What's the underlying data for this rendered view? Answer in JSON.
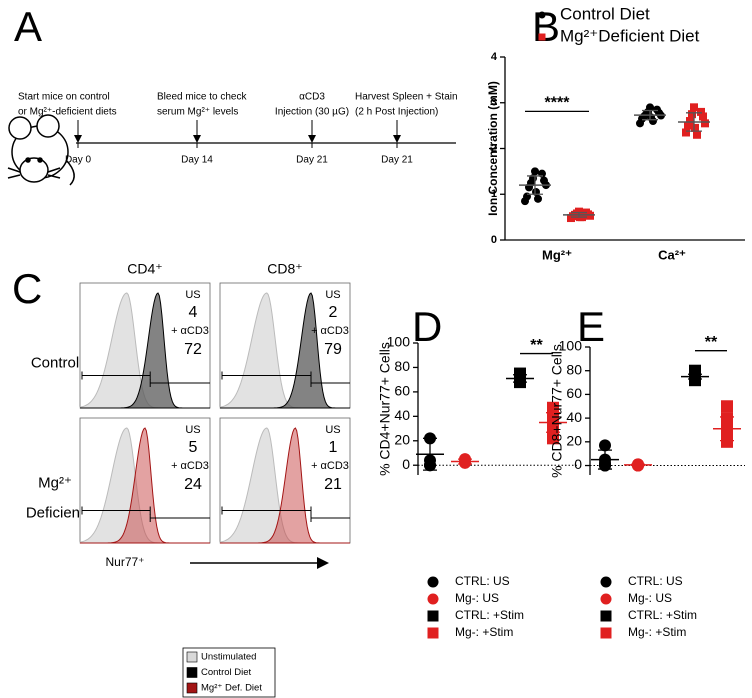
{
  "panel_labels": [
    "A",
    "B",
    "C",
    "D",
    "E"
  ],
  "timeline": {
    "events": [
      {
        "lines": [
          "Start mice on control",
          "or Mg²⁺-deficient diets"
        ],
        "day": "Day 0"
      },
      {
        "lines": [
          "Bleed mice to check",
          "serum Mg²⁺ levels"
        ],
        "day": "Day 14"
      },
      {
        "lines": [
          "αCD3",
          "Injection (30 µG)"
        ],
        "day": "Day 21"
      },
      {
        "lines": [
          "Harvest Spleen + Stain",
          "(2 h Post Injection)"
        ],
        "day": "Day 21"
      }
    ]
  },
  "histograms": {
    "columns": [
      "CD4⁺",
      "CD8⁺"
    ],
    "rows": [
      {
        "label_lines": [
          "Control"
        ]
      },
      {
        "label_lines": [
          "Mg²⁺",
          "Deficient"
        ]
      }
    ],
    "us_label": "US",
    "stim_label": "+ αCD3",
    "cells": [
      [
        {
          "us": 4,
          "stim": 72
        },
        {
          "us": 2,
          "stim": 79
        }
      ],
      [
        {
          "us": 5,
          "stim": 24
        },
        {
          "us": 1,
          "stim": 21
        }
      ]
    ],
    "x_label": "Nur77⁺",
    "legend": [
      {
        "name": "Unstimulated",
        "color": "#d9d9d9"
      },
      {
        "name": "Control Diet",
        "color": "#000000"
      },
      {
        "name": "Mg²⁺ Def. Diet",
        "color": "#a31515"
      }
    ]
  },
  "chart_data": [
    {
      "type": "dotplot",
      "y_label": "Ion Concentration (mM)",
      "categories": [
        "Mg²⁺",
        "Ca²⁺"
      ],
      "legend_position": "top",
      "series": [
        {
          "name": "Control Diet",
          "color": "#000000",
          "marker": "circle",
          "values": [
            [
              1.5,
              1.45,
              1.35,
              1.3,
              1.25,
              1.2,
              1.15,
              1.05,
              0.95,
              0.9,
              0.85
            ],
            [
              2.9,
              2.85,
              2.8,
              2.78,
              2.75,
              2.72,
              2.7,
              2.68,
              2.65,
              2.6,
              2.55
            ]
          ],
          "mean": [
            1.2,
            2.73
          ],
          "error": [
            0.2,
            0.1
          ]
        },
        {
          "name": "Mg²⁺Deficient Diet",
          "color": "#e02020",
          "marker": "square",
          "values": [
            [
              0.62,
              0.6,
              0.58,
              0.56,
              0.55,
              0.53,
              0.52,
              0.5,
              0.48,
              0.5
            ],
            [
              2.9,
              2.8,
              2.75,
              2.7,
              2.6,
              2.55,
              2.5,
              2.45,
              2.35,
              2.3
            ]
          ],
          "mean": [
            0.55,
            2.58
          ],
          "error": [
            0.05,
            0.2
          ]
        }
      ],
      "ylim": [
        0,
        4
      ],
      "yticks": [
        0,
        1,
        2,
        3,
        4
      ],
      "significance": [
        {
          "label": "****",
          "category": 0
        }
      ]
    },
    {
      "type": "dotplot",
      "y_label": "% CD4+Nur77+ Cells",
      "legend_position": "bottom",
      "zero_line": true,
      "series": [
        {
          "name": "CTRL: US",
          "color": "#000000",
          "marker": "circle",
          "values": [
            22,
            4,
            0,
            0
          ],
          "mean": [
            9
          ],
          "error": [
            13
          ]
        },
        {
          "name": "Mg-: US",
          "color": "#e02020",
          "marker": "circle",
          "values": [
            5,
            3,
            2,
            2
          ],
          "mean": [
            3
          ],
          "error": [
            2
          ]
        },
        {
          "name": "CTRL: +Stim",
          "color": "#000000",
          "marker": "square",
          "values": [
            75,
            73,
            72,
            68,
            70
          ],
          "mean": [
            71
          ],
          "error": [
            3
          ]
        },
        {
          "name": "Mg-: +Stim",
          "color": "#e02020",
          "marker": "square",
          "values": [
            47,
            38,
            35,
            27,
            22
          ],
          "mean": [
            35
          ],
          "error": [
            8
          ]
        }
      ],
      "ylim": [
        -8,
        100
      ],
      "yticks": [
        0,
        20,
        40,
        60,
        80,
        100
      ],
      "significance": [
        {
          "label": "**",
          "between": [
            2,
            3
          ]
        }
      ]
    },
    {
      "type": "dotplot",
      "y_label": "% CD8+Nur77+ Cells",
      "legend_position": "bottom",
      "zero_line": true,
      "series": [
        {
          "name": "CTRL: US",
          "color": "#000000",
          "marker": "circle",
          "values": [
            17,
            5,
            2,
            0,
            0
          ],
          "mean": [
            5
          ],
          "error": [
            8
          ]
        },
        {
          "name": "Mg-: US",
          "color": "#e02020",
          "marker": "circle",
          "values": [
            1,
            1,
            0,
            0,
            0
          ],
          "mean": [
            0.5
          ],
          "error": [
            0.5
          ]
        },
        {
          "name": "CTRL: +Stim",
          "color": "#000000",
          "marker": "square",
          "values": [
            80,
            78,
            76,
            74,
            72
          ],
          "mean": [
            75
          ],
          "error": [
            2
          ]
        },
        {
          "name": "Mg-: +Stim",
          "color": "#e02020",
          "marker": "square",
          "values": [
            50,
            40,
            32,
            25,
            20
          ],
          "mean": [
            31
          ],
          "error": [
            10
          ]
        }
      ],
      "ylim": [
        -8,
        100
      ],
      "yticks": [
        0,
        20,
        40,
        60,
        80,
        100
      ],
      "significance": [
        {
          "label": "**",
          "between": [
            2,
            3
          ]
        }
      ]
    }
  ]
}
